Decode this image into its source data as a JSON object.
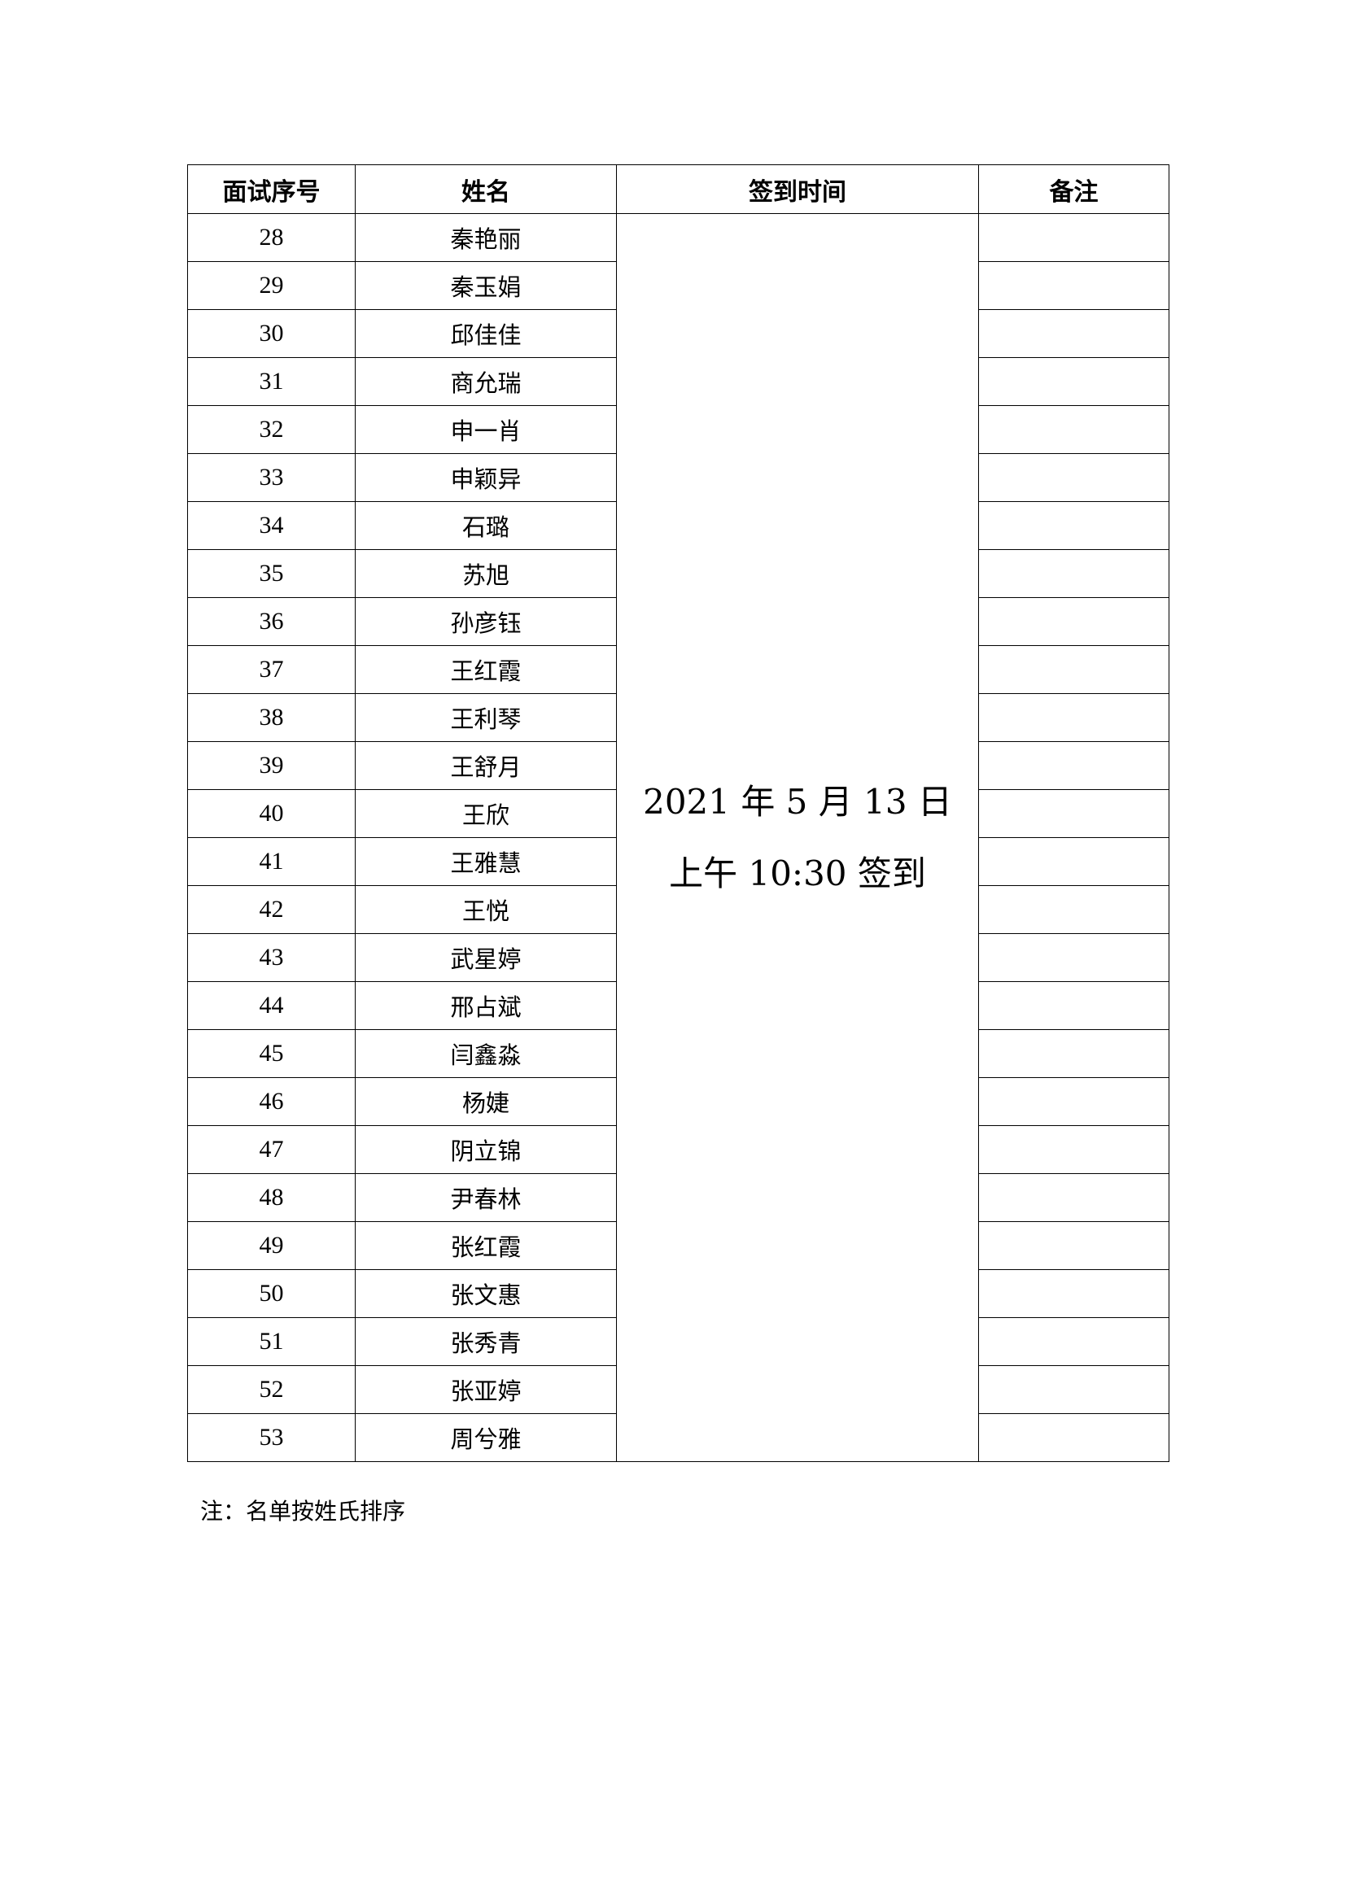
{
  "table": {
    "headers": [
      "面试序号",
      "姓名",
      "签到时间",
      "备注"
    ],
    "signin_time": {
      "line1": "2021 年 5 月 13 日",
      "line2": "上午 10:30 签到"
    },
    "rows": [
      {
        "no": "28",
        "name": "秦艳丽"
      },
      {
        "no": "29",
        "name": "秦玉娟"
      },
      {
        "no": "30",
        "name": "邱佳佳"
      },
      {
        "no": "31",
        "name": "商允瑞"
      },
      {
        "no": "32",
        "name": "申一肖"
      },
      {
        "no": "33",
        "name": "申颖异"
      },
      {
        "no": "34",
        "name": "石璐"
      },
      {
        "no": "35",
        "name": "苏旭"
      },
      {
        "no": "36",
        "name": "孙彦钰"
      },
      {
        "no": "37",
        "name": "王红霞"
      },
      {
        "no": "38",
        "name": "王利琴"
      },
      {
        "no": "39",
        "name": "王舒月"
      },
      {
        "no": "40",
        "name": "王欣"
      },
      {
        "no": "41",
        "name": "王雅慧"
      },
      {
        "no": "42",
        "name": "王悦"
      },
      {
        "no": "43",
        "name": "武星婷"
      },
      {
        "no": "44",
        "name": "邢占斌"
      },
      {
        "no": "45",
        "name": "闫鑫淼"
      },
      {
        "no": "46",
        "name": "杨婕"
      },
      {
        "no": "47",
        "name": "阴立锦"
      },
      {
        "no": "48",
        "name": "尹春林"
      },
      {
        "no": "49",
        "name": "张红霞"
      },
      {
        "no": "50",
        "name": "张文惠"
      },
      {
        "no": "51",
        "name": "张秀青"
      },
      {
        "no": "52",
        "name": "张亚婷"
      },
      {
        "no": "53",
        "name": "周兮雅"
      }
    ]
  },
  "note": "注：名单按姓氏排序"
}
